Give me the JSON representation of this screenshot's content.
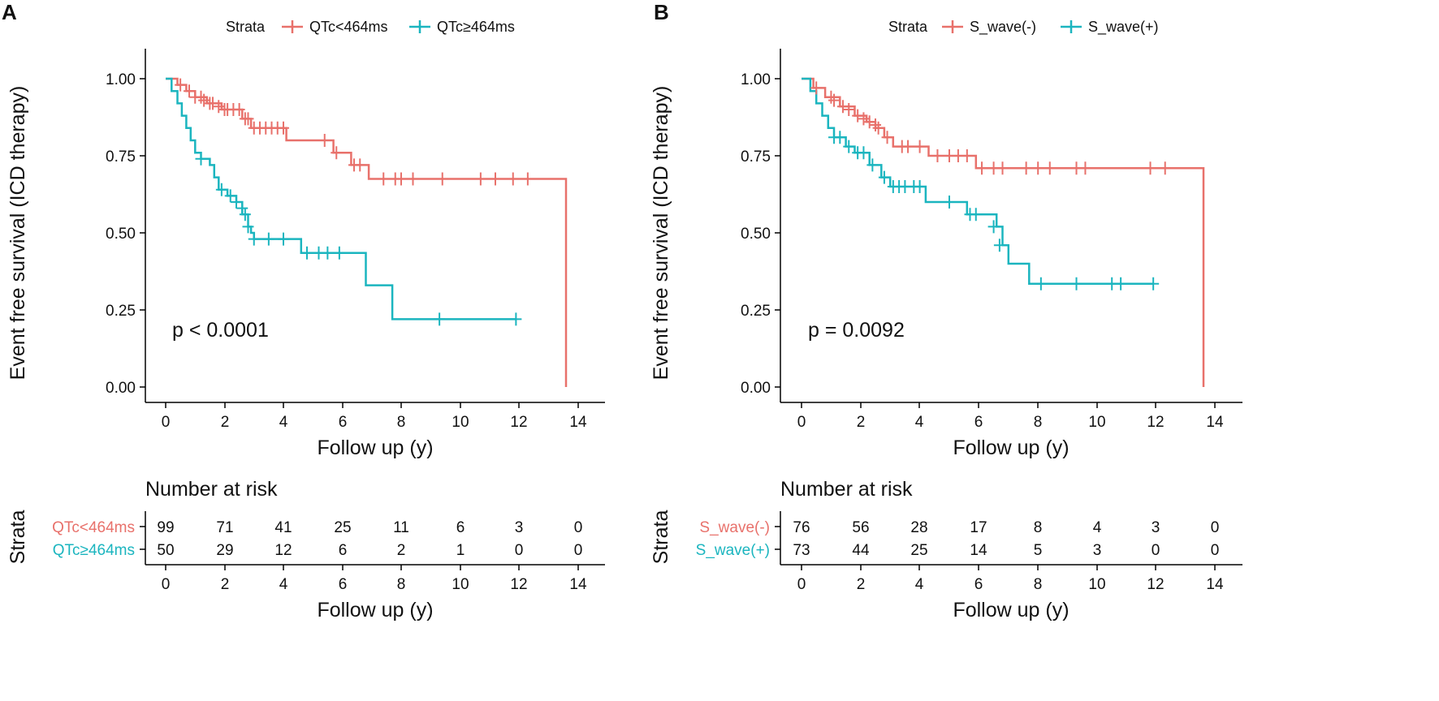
{
  "colors": {
    "red": "#E8716B",
    "teal": "#1BB5BF",
    "axis": "#000000",
    "text": "#111111"
  },
  "chart_data": [
    {
      "type": "line",
      "panel_label": "A",
      "legend_title": "Strata",
      "ylabel": "Event free survival (ICD therapy)",
      "xlabel": "Follow up (y)",
      "xlim": [
        -0.8,
        15.5
      ],
      "ylim": [
        -0.05,
        1.05
      ],
      "x_ticks": [
        "0",
        "2",
        "4",
        "6",
        "8",
        "10",
        "12",
        "14"
      ],
      "y_ticks": [
        "0.00",
        "0.25",
        "0.50",
        "0.75",
        "1.00"
      ],
      "annotation": "p < 0.0001",
      "annotation_pos": [
        1.0,
        0.2
      ],
      "series": [
        {
          "name": "QTc<464ms",
          "color_key": "red",
          "steps": [
            [
              0,
              1
            ],
            [
              0.4,
              0.98
            ],
            [
              0.7,
              0.96
            ],
            [
              1.0,
              0.94
            ],
            [
              1.4,
              0.92
            ],
            [
              1.9,
              0.9
            ],
            [
              2.6,
              0.87
            ],
            [
              2.9,
              0.84
            ],
            [
              4.1,
              0.8
            ],
            [
              5.7,
              0.76
            ],
            [
              6.3,
              0.72
            ],
            [
              6.9,
              0.675
            ],
            [
              13.6,
              0.675
            ],
            [
              13.6,
              0.0
            ]
          ],
          "censors": [
            [
              0.5,
              0.98
            ],
            [
              0.8,
              0.96
            ],
            [
              1.0,
              0.94
            ],
            [
              1.2,
              0.94
            ],
            [
              1.3,
              0.93
            ],
            [
              1.5,
              0.92
            ],
            [
              1.6,
              0.92
            ],
            [
              1.8,
              0.91
            ],
            [
              2.0,
              0.9
            ],
            [
              2.1,
              0.9
            ],
            [
              2.3,
              0.9
            ],
            [
              2.5,
              0.9
            ],
            [
              2.7,
              0.87
            ],
            [
              2.8,
              0.87
            ],
            [
              3.0,
              0.84
            ],
            [
              3.2,
              0.84
            ],
            [
              3.4,
              0.84
            ],
            [
              3.6,
              0.84
            ],
            [
              3.8,
              0.84
            ],
            [
              4.0,
              0.84
            ],
            [
              5.4,
              0.8
            ],
            [
              5.8,
              0.76
            ],
            [
              6.4,
              0.72
            ],
            [
              6.6,
              0.72
            ],
            [
              7.4,
              0.675
            ],
            [
              7.8,
              0.675
            ],
            [
              8.0,
              0.675
            ],
            [
              8.4,
              0.675
            ],
            [
              9.4,
              0.675
            ],
            [
              10.7,
              0.675
            ],
            [
              11.2,
              0.675
            ],
            [
              11.8,
              0.675
            ],
            [
              12.3,
              0.675
            ]
          ],
          "risk": [
            "99",
            "71",
            "41",
            "25",
            "11",
            "6",
            "3",
            "0"
          ]
        },
        {
          "name": "QTc≥464ms",
          "color_key": "teal",
          "steps": [
            [
              0,
              1
            ],
            [
              0.2,
              0.96
            ],
            [
              0.4,
              0.92
            ],
            [
              0.55,
              0.88
            ],
            [
              0.7,
              0.84
            ],
            [
              0.85,
              0.8
            ],
            [
              1.0,
              0.76
            ],
            [
              1.2,
              0.74
            ],
            [
              1.5,
              0.72
            ],
            [
              1.65,
              0.68
            ],
            [
              1.8,
              0.64
            ],
            [
              2.1,
              0.62
            ],
            [
              2.4,
              0.6
            ],
            [
              2.6,
              0.56
            ],
            [
              2.8,
              0.52
            ],
            [
              2.9,
              0.5
            ],
            [
              3.0,
              0.48
            ],
            [
              4.6,
              0.435
            ],
            [
              6.8,
              0.33
            ],
            [
              7.7,
              0.22
            ],
            [
              11.9,
              0.22
            ]
          ],
          "censors": [
            [
              1.2,
              0.74
            ],
            [
              1.9,
              0.64
            ],
            [
              2.2,
              0.62
            ],
            [
              2.4,
              0.6
            ],
            [
              2.6,
              0.58
            ],
            [
              2.7,
              0.56
            ],
            [
              2.8,
              0.52
            ],
            [
              3.0,
              0.48
            ],
            [
              3.5,
              0.48
            ],
            [
              4.0,
              0.48
            ],
            [
              4.8,
              0.435
            ],
            [
              5.2,
              0.435
            ],
            [
              5.5,
              0.435
            ],
            [
              5.9,
              0.435
            ],
            [
              9.3,
              0.22
            ],
            [
              11.9,
              0.22
            ]
          ],
          "risk": [
            "50",
            "29",
            "12",
            "6",
            "2",
            "1",
            "0",
            "0"
          ]
        }
      ],
      "risk_table": {
        "title": "Number at risk",
        "ylabel": "Strata",
        "xlabel": "Follow up (y)",
        "x_ticks": [
          "0",
          "2",
          "4",
          "6",
          "8",
          "10",
          "12",
          "14"
        ]
      }
    },
    {
      "type": "line",
      "panel_label": "B",
      "legend_title": "Strata",
      "ylabel": "Event free survival (ICD therapy)",
      "xlabel": "Follow up (y)",
      "xlim": [
        -0.8,
        15.5
      ],
      "ylim": [
        -0.05,
        1.05
      ],
      "x_ticks": [
        "0",
        "2",
        "4",
        "6",
        "8",
        "10",
        "12",
        "14"
      ],
      "y_ticks": [
        "0.00",
        "0.25",
        "0.50",
        "0.75",
        "1.00"
      ],
      "annotation": "p = 0.0092",
      "annotation_pos": [
        1.0,
        0.2
      ],
      "series": [
        {
          "name": "S_wave(-)",
          "color_key": "red",
          "steps": [
            [
              0,
              1
            ],
            [
              0.4,
              0.97
            ],
            [
              0.8,
              0.94
            ],
            [
              1.3,
              0.91
            ],
            [
              1.8,
              0.88
            ],
            [
              2.2,
              0.86
            ],
            [
              2.5,
              0.84
            ],
            [
              2.8,
              0.81
            ],
            [
              3.1,
              0.78
            ],
            [
              4.3,
              0.75
            ],
            [
              5.9,
              0.71
            ],
            [
              13.6,
              0.71
            ],
            [
              13.6,
              0.0
            ]
          ],
          "censors": [
            [
              0.5,
              0.97
            ],
            [
              1.0,
              0.94
            ],
            [
              1.1,
              0.93
            ],
            [
              1.4,
              0.91
            ],
            [
              1.6,
              0.9
            ],
            [
              1.9,
              0.88
            ],
            [
              2.1,
              0.87
            ],
            [
              2.3,
              0.86
            ],
            [
              2.5,
              0.85
            ],
            [
              2.6,
              0.84
            ],
            [
              2.9,
              0.81
            ],
            [
              3.4,
              0.78
            ],
            [
              3.6,
              0.78
            ],
            [
              4.0,
              0.78
            ],
            [
              4.6,
              0.75
            ],
            [
              5.0,
              0.75
            ],
            [
              5.3,
              0.75
            ],
            [
              5.6,
              0.75
            ],
            [
              6.1,
              0.71
            ],
            [
              6.5,
              0.71
            ],
            [
              6.8,
              0.71
            ],
            [
              7.6,
              0.71
            ],
            [
              8.0,
              0.71
            ],
            [
              8.4,
              0.71
            ],
            [
              9.3,
              0.71
            ],
            [
              9.6,
              0.71
            ],
            [
              11.8,
              0.71
            ],
            [
              12.3,
              0.71
            ]
          ],
          "risk": [
            "76",
            "56",
            "28",
            "17",
            "8",
            "4",
            "3",
            "0"
          ]
        },
        {
          "name": "S_wave(+)",
          "color_key": "teal",
          "steps": [
            [
              0,
              1
            ],
            [
              0.3,
              0.96
            ],
            [
              0.5,
              0.92
            ],
            [
              0.7,
              0.88
            ],
            [
              0.9,
              0.84
            ],
            [
              1.1,
              0.81
            ],
            [
              1.5,
              0.78
            ],
            [
              1.8,
              0.76
            ],
            [
              2.3,
              0.72
            ],
            [
              2.7,
              0.68
            ],
            [
              3.0,
              0.65
            ],
            [
              4.2,
              0.6
            ],
            [
              5.6,
              0.56
            ],
            [
              6.6,
              0.52
            ],
            [
              6.8,
              0.46
            ],
            [
              7.0,
              0.4
            ],
            [
              7.7,
              0.335
            ],
            [
              11.9,
              0.335
            ]
          ],
          "censors": [
            [
              1.1,
              0.81
            ],
            [
              1.3,
              0.81
            ],
            [
              1.6,
              0.78
            ],
            [
              1.9,
              0.76
            ],
            [
              2.1,
              0.76
            ],
            [
              2.4,
              0.72
            ],
            [
              2.8,
              0.68
            ],
            [
              3.1,
              0.65
            ],
            [
              3.3,
              0.65
            ],
            [
              3.5,
              0.65
            ],
            [
              3.8,
              0.65
            ],
            [
              4.0,
              0.65
            ],
            [
              5.0,
              0.6
            ],
            [
              5.7,
              0.56
            ],
            [
              5.9,
              0.56
            ],
            [
              6.5,
              0.52
            ],
            [
              6.7,
              0.46
            ],
            [
              8.1,
              0.335
            ],
            [
              9.3,
              0.335
            ],
            [
              10.5,
              0.335
            ],
            [
              10.8,
              0.335
            ],
            [
              11.9,
              0.335
            ]
          ],
          "risk": [
            "73",
            "44",
            "25",
            "14",
            "5",
            "3",
            "0",
            "0"
          ]
        }
      ],
      "risk_table": {
        "title": "Number at risk",
        "ylabel": "Strata",
        "xlabel": "Follow up (y)",
        "x_ticks": [
          "0",
          "2",
          "4",
          "6",
          "8",
          "10",
          "12",
          "14"
        ]
      }
    }
  ]
}
